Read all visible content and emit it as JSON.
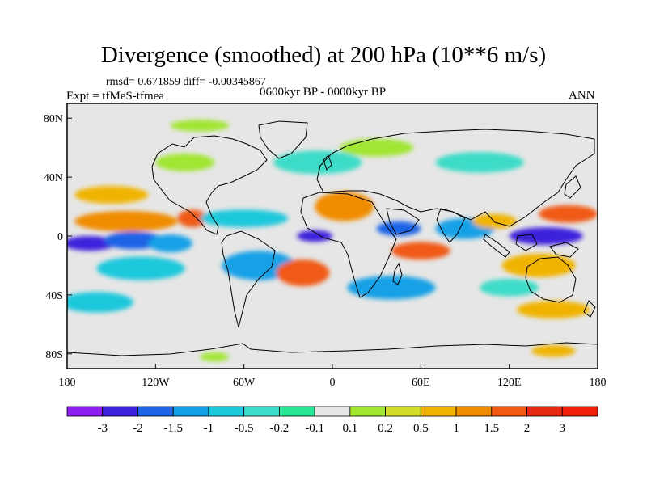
{
  "title": "Divergence (smoothed) at 200 hPa (10**6 m/s)",
  "stats": "rmsd= 0.671859 diff= -0.00345867",
  "experiment": "Expt = tfMeS-tfmea",
  "period": "0600kyr BP - 0000kyr BP",
  "season": "ANN",
  "axes": {
    "lat_ticks": [
      {
        "label": "80N",
        "value": 80
      },
      {
        "label": "40N",
        "value": 40
      },
      {
        "label": "0",
        "value": 0
      },
      {
        "label": "40S",
        "value": -40
      },
      {
        "label": "80S",
        "value": -80
      }
    ],
    "lon_ticks": [
      {
        "label": "180",
        "value": -180
      },
      {
        "label": "120W",
        "value": -120
      },
      {
        "label": "60W",
        "value": -60
      },
      {
        "label": "0",
        "value": 0
      },
      {
        "label": "60E",
        "value": 60
      },
      {
        "label": "120E",
        "value": 120
      },
      {
        "label": "180",
        "value": 180
      }
    ]
  },
  "colorbar": {
    "colors": [
      "#8c1ef0",
      "#3c23dc",
      "#1e64e6",
      "#14a0e6",
      "#1ec8dc",
      "#3cdcc8",
      "#28e696",
      "#e6e6e6",
      "#a0e632",
      "#d2dc28",
      "#f0b400",
      "#f08c00",
      "#f05a14",
      "#e62814",
      "#f01e0a"
    ],
    "labels": [
      "-3",
      "-2",
      "-1.5",
      "-1",
      "-0.5",
      "-0.2",
      "-0.1",
      "0.1",
      "0.2",
      "0.5",
      "1",
      "1.5",
      "2",
      "3"
    ]
  },
  "map_field": {
    "background": "#e6e6e6",
    "blobs": [
      {
        "lon": -165,
        "lat": -5,
        "rx": 18,
        "ry": 5,
        "color": "#3c23dc"
      },
      {
        "lon": -135,
        "lat": -3,
        "rx": 20,
        "ry": 6,
        "color": "#1e64e6"
      },
      {
        "lon": -110,
        "lat": -5,
        "rx": 15,
        "ry": 6,
        "color": "#14a0e6"
      },
      {
        "lon": -140,
        "lat": 10,
        "rx": 35,
        "ry": 7,
        "color": "#f08c00"
      },
      {
        "lon": -95,
        "lat": 12,
        "rx": 10,
        "ry": 6,
        "color": "#f05a14"
      },
      {
        "lon": -130,
        "lat": -22,
        "rx": 30,
        "ry": 8,
        "color": "#1ec8dc"
      },
      {
        "lon": -150,
        "lat": 28,
        "rx": 25,
        "ry": 6,
        "color": "#f0b400"
      },
      {
        "lon": -60,
        "lat": 12,
        "rx": 30,
        "ry": 6,
        "color": "#1ec8dc"
      },
      {
        "lon": -50,
        "lat": -20,
        "rx": 25,
        "ry": 10,
        "color": "#14a0e6"
      },
      {
        "lon": -20,
        "lat": -25,
        "rx": 18,
        "ry": 9,
        "color": "#f05a14"
      },
      {
        "lon": -12,
        "lat": 0,
        "rx": 12,
        "ry": 4,
        "color": "#3c23dc"
      },
      {
        "lon": 8,
        "lat": 20,
        "rx": 20,
        "ry": 10,
        "color": "#f08c00"
      },
      {
        "lon": 45,
        "lat": 5,
        "rx": 15,
        "ry": 5,
        "color": "#1e64e6"
      },
      {
        "lon": 60,
        "lat": -10,
        "rx": 20,
        "ry": 6,
        "color": "#f05a14"
      },
      {
        "lon": 90,
        "lat": 5,
        "rx": 20,
        "ry": 7,
        "color": "#14a0e6"
      },
      {
        "lon": 145,
        "lat": 0,
        "rx": 25,
        "ry": 6,
        "color": "#3c23dc"
      },
      {
        "lon": 160,
        "lat": 15,
        "rx": 20,
        "ry": 6,
        "color": "#f05a14"
      },
      {
        "lon": 110,
        "lat": 10,
        "rx": 15,
        "ry": 5,
        "color": "#f0b400"
      },
      {
        "lon": 140,
        "lat": -20,
        "rx": 25,
        "ry": 8,
        "color": "#f0b400"
      },
      {
        "lon": 40,
        "lat": -35,
        "rx": 30,
        "ry": 8,
        "color": "#14a0e6"
      },
      {
        "lon": -10,
        "lat": 50,
        "rx": 30,
        "ry": 8,
        "color": "#3cdcc8"
      },
      {
        "lon": 100,
        "lat": 50,
        "rx": 30,
        "ry": 7,
        "color": "#3cdcc8"
      },
      {
        "lon": -100,
        "lat": 50,
        "rx": 20,
        "ry": 6,
        "color": "#a0e632"
      },
      {
        "lon": 30,
        "lat": 60,
        "rx": 25,
        "ry": 6,
        "color": "#a0e632"
      },
      {
        "lon": -160,
        "lat": -45,
        "rx": 25,
        "ry": 7,
        "color": "#1ec8dc"
      },
      {
        "lon": 150,
        "lat": -50,
        "rx": 25,
        "ry": 6,
        "color": "#f0b400"
      },
      {
        "lon": 120,
        "lat": -35,
        "rx": 20,
        "ry": 6,
        "color": "#3cdcc8"
      },
      {
        "lon": -90,
        "lat": 75,
        "rx": 20,
        "ry": 4,
        "color": "#a0e632"
      },
      {
        "lon": 150,
        "lat": -78,
        "rx": 15,
        "ry": 4,
        "color": "#f0b400"
      },
      {
        "lon": -80,
        "lat": -82,
        "rx": 10,
        "ry": 3,
        "color": "#a0e632"
      }
    ]
  }
}
